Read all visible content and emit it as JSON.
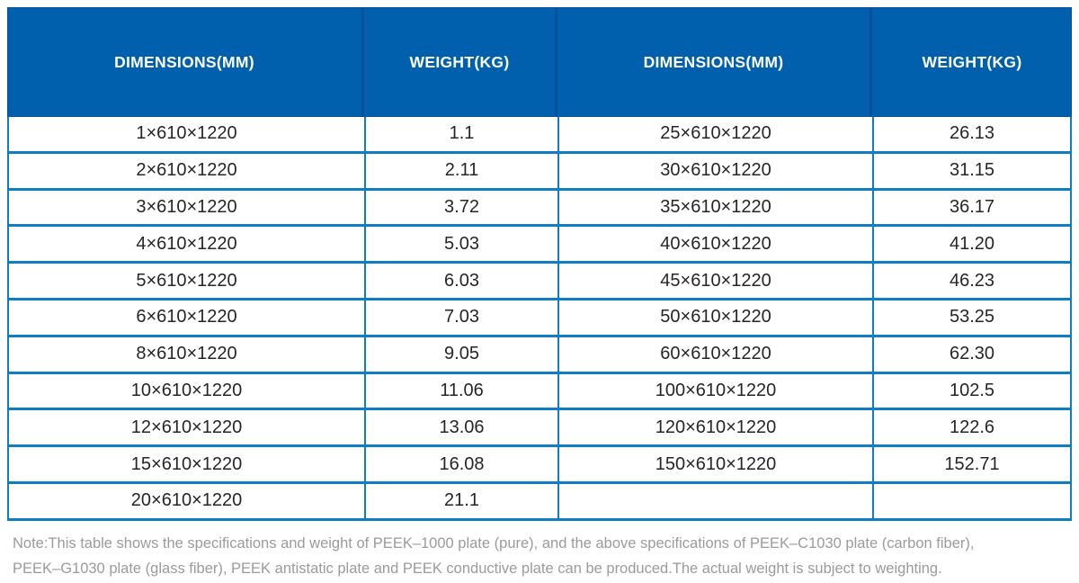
{
  "colors": {
    "header_bg": "#0060AE",
    "header_divider": "#07519B",
    "grid_line": "#0F7DC2",
    "header_text": "#FFFFFF",
    "cell_text": "#262626",
    "note_text": "#9B9B9B"
  },
  "table": {
    "headers": [
      "DIMENSIONS(MM)",
      "WEIGHT(KG)",
      "DIMENSIONS(MM)",
      "WEIGHT(KG)"
    ],
    "rows": [
      {
        "dim_left": "1×610×1220",
        "weight_left": "1.1",
        "dim_right": "25×610×1220",
        "weight_right": "26.13"
      },
      {
        "dim_left": "2×610×1220",
        "weight_left": "2.11",
        "dim_right": "30×610×1220",
        "weight_right": "31.15"
      },
      {
        "dim_left": "3×610×1220",
        "weight_left": "3.72",
        "dim_right": "35×610×1220",
        "weight_right": "36.17"
      },
      {
        "dim_left": "4×610×1220",
        "weight_left": "5.03",
        "dim_right": "40×610×1220",
        "weight_right": "41.20"
      },
      {
        "dim_left": "5×610×1220",
        "weight_left": "6.03",
        "dim_right": "45×610×1220",
        "weight_right": "46.23"
      },
      {
        "dim_left": "6×610×1220",
        "weight_left": "7.03",
        "dim_right": "50×610×1220",
        "weight_right": "53.25"
      },
      {
        "dim_left": "8×610×1220",
        "weight_left": "9.05",
        "dim_right": "60×610×1220",
        "weight_right": "62.30"
      },
      {
        "dim_left": "10×610×1220",
        "weight_left": "11.06",
        "dim_right": "100×610×1220",
        "weight_right": "102.5"
      },
      {
        "dim_left": "12×610×1220",
        "weight_left": "13.06",
        "dim_right": "120×610×1220",
        "weight_right": "122.6"
      },
      {
        "dim_left": "15×610×1220",
        "weight_left": "16.08",
        "dim_right": "150×610×1220",
        "weight_right": "152.71"
      },
      {
        "dim_left": "20×610×1220",
        "weight_left": "21.1",
        "dim_right": "",
        "weight_right": ""
      }
    ]
  },
  "note": {
    "line1": "Note:This table shows the specifications and weight of PEEK–1000 plate (pure), and the above specifications of PEEK–C1030 plate (carbon fiber),",
    "line2": "PEEK–G1030 plate (glass fiber), PEEK antistatic plate and PEEK conductive plate can be produced.The actual weight is subject to weighting."
  }
}
